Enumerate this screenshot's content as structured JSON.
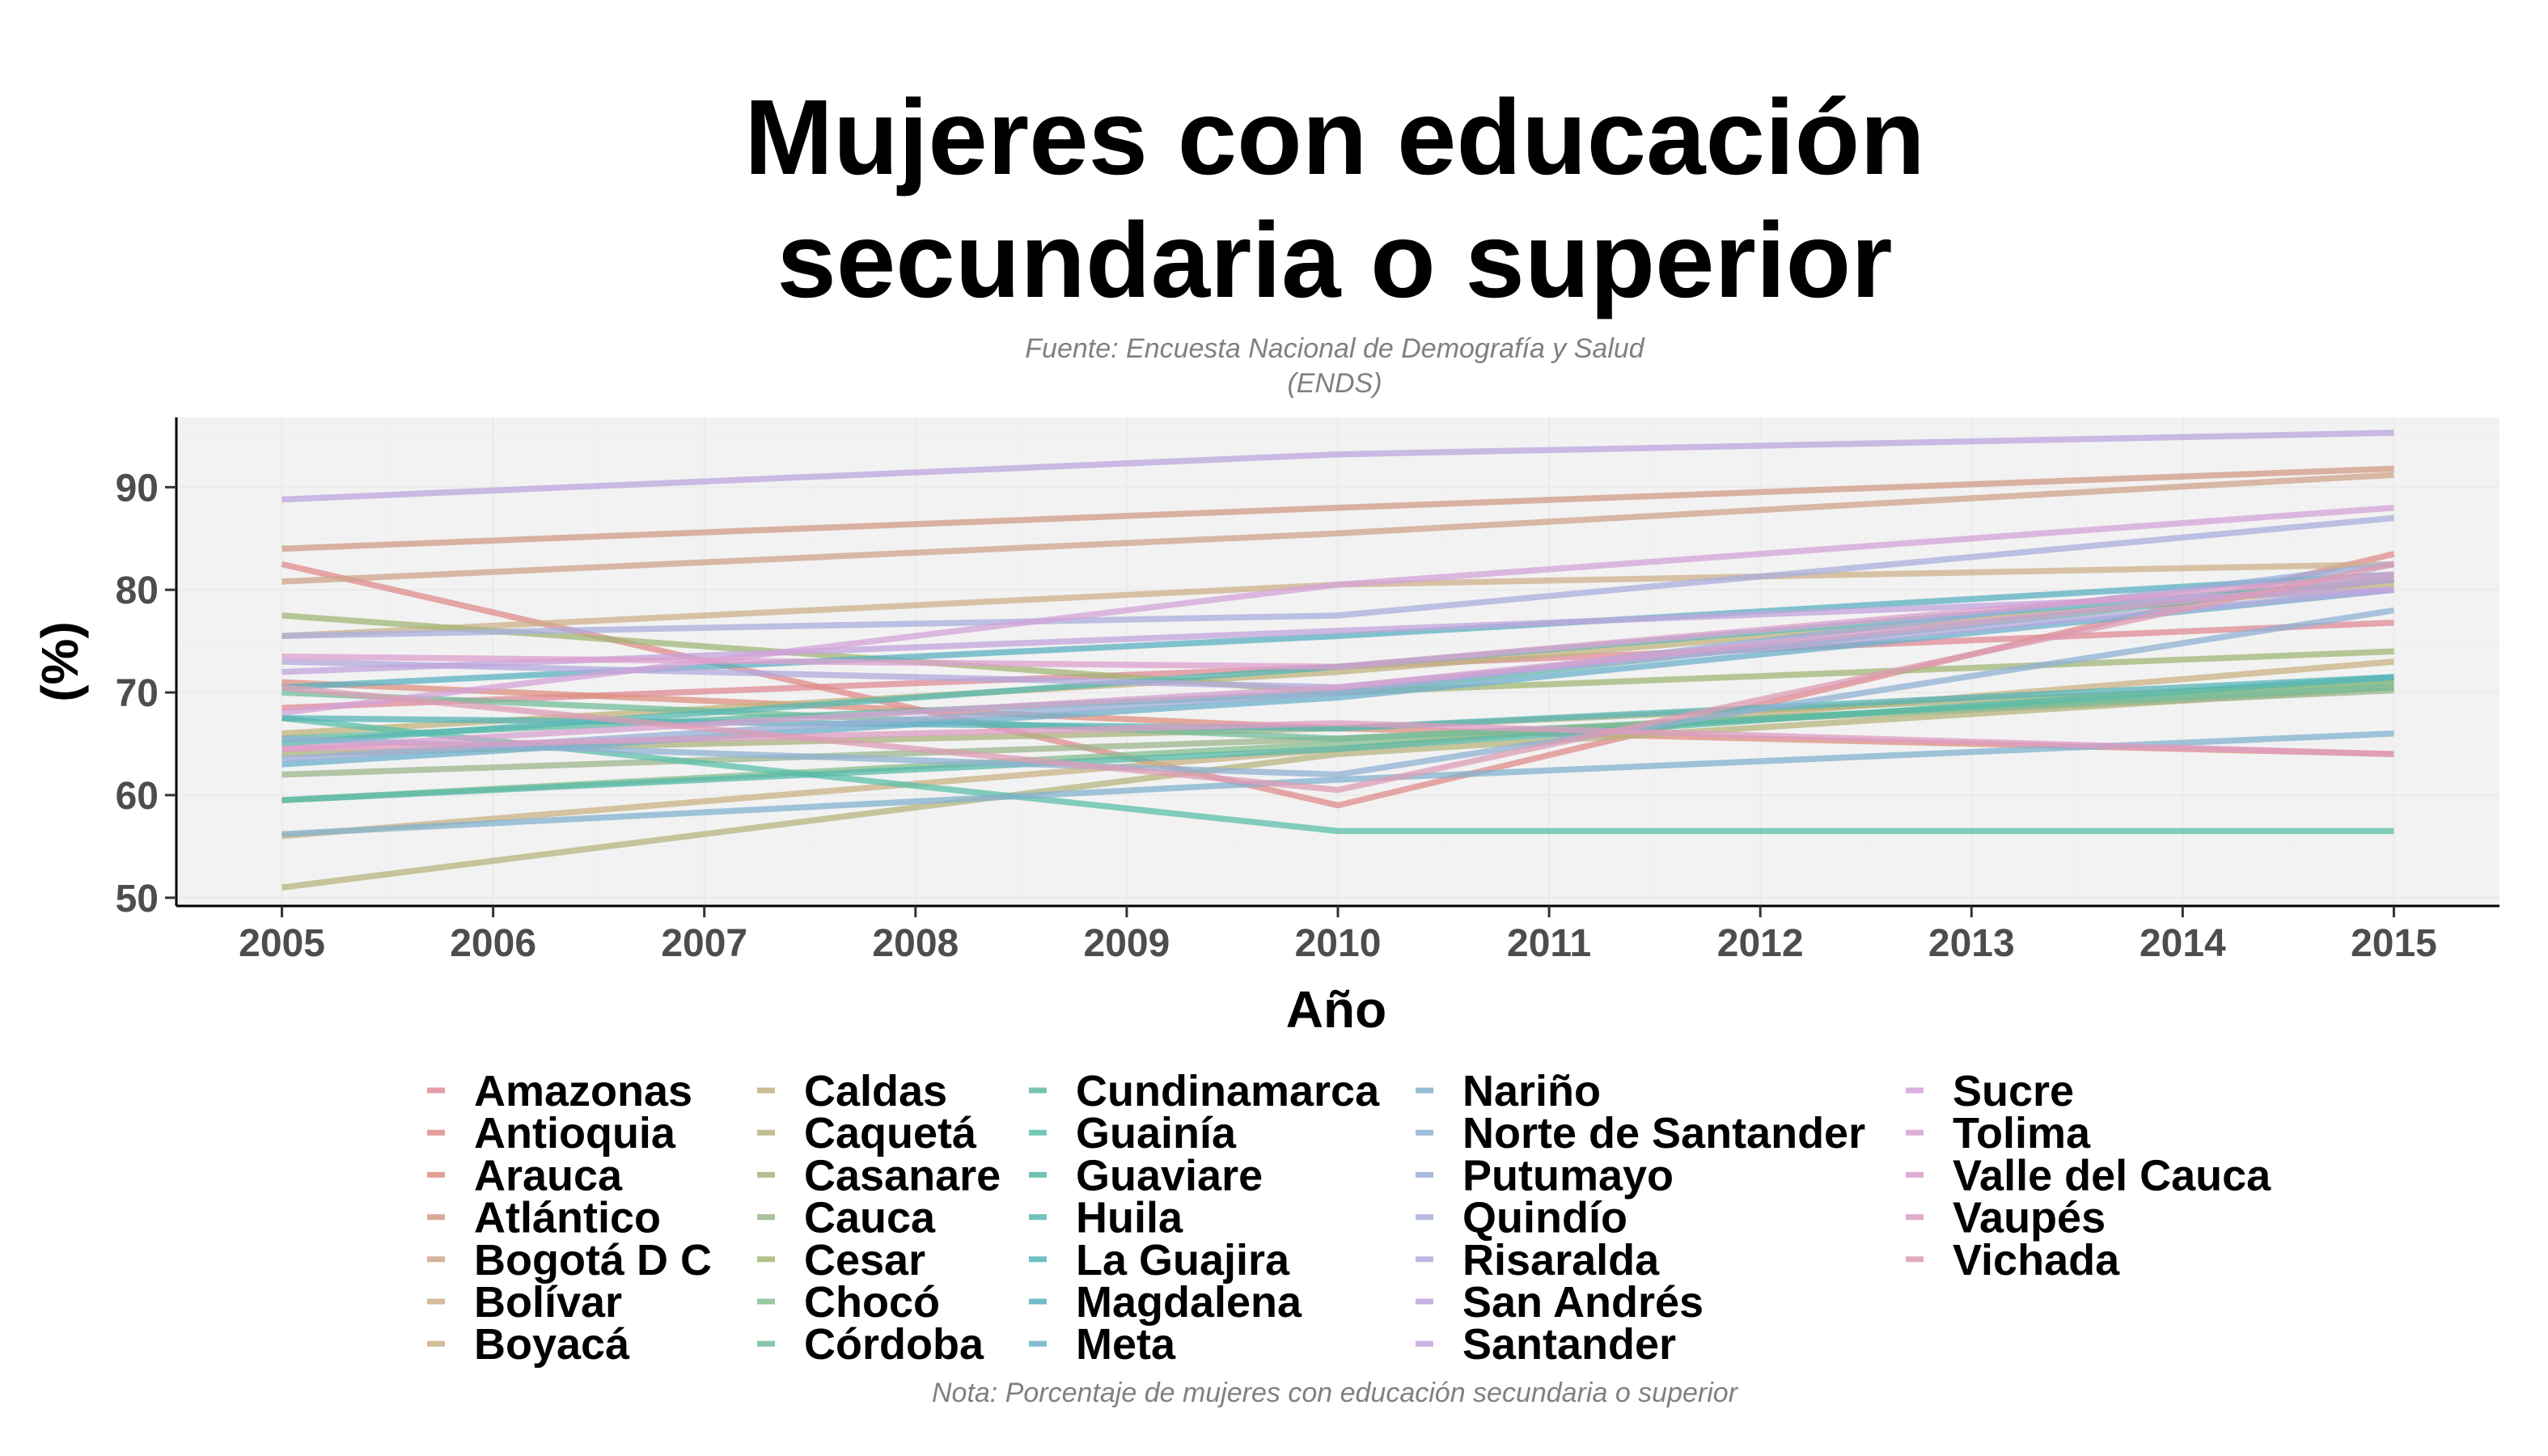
{
  "chart_data": {
    "type": "line",
    "title_lines": [
      "Mujeres con educación",
      "secundaria o superior"
    ],
    "subtitle_lines": [
      "Fuente: Encuesta Nacional de Demografía y Salud",
      "(ENDS)"
    ],
    "caption": "Nota: Porcentaje de mujeres con educación secundaria o superior",
    "xlabel": "Año",
    "ylabel": "(%)",
    "x_ticks": [
      "2005",
      "2006",
      "2007",
      "2008",
      "2009",
      "2010",
      "2011",
      "2012",
      "2013",
      "2014",
      "2015"
    ],
    "y_ticks": [
      "50",
      "60",
      "70",
      "80",
      "90"
    ],
    "xlim": [
      2004.5,
      2015.5
    ],
    "ylim": [
      49.2,
      96.8
    ],
    "grid": true,
    "legend_position": "bottom",
    "x": [
      2005,
      2010,
      2015
    ],
    "series": [
      {
        "name": "Amazonas",
        "color": "#df8b96",
        "values": [
          68.5,
          72.5,
          76.8
        ]
      },
      {
        "name": "Antioquia",
        "color": "#e08b8b",
        "values": [
          82.5,
          59.0,
          83.5
        ]
      },
      {
        "name": "Arauca",
        "color": "#dd9080",
        "values": [
          71.0,
          66.5,
          64.0
        ]
      },
      {
        "name": "Atlántico",
        "color": "#d29a86",
        "values": [
          84.0,
          88.0,
          91.8
        ]
      },
      {
        "name": "Bogotá D C",
        "color": "#cfa38b",
        "values": [
          80.8,
          85.5,
          91.2
        ]
      },
      {
        "name": "Bolívar",
        "color": "#cdb08b",
        "values": [
          75.5,
          80.5,
          82.5
        ]
      },
      {
        "name": "Boyacá",
        "color": "#cab184",
        "values": [
          56.0,
          64.5,
          73.0
        ]
      },
      {
        "name": "Caldas",
        "color": "#bfb37d",
        "values": [
          66.0,
          72.0,
          80.5
        ]
      },
      {
        "name": "Caquetá",
        "color": "#b6b47e",
        "values": [
          51.0,
          64.0,
          70.5
        ]
      },
      {
        "name": "Casanare",
        "color": "#a9b37d",
        "values": [
          64.0,
          66.5,
          71.0
        ]
      },
      {
        "name": "Cauca",
        "color": "#9cb58c",
        "values": [
          62.0,
          65.5,
          70.2
        ]
      },
      {
        "name": "Cesar",
        "color": "#a2b676",
        "values": [
          77.5,
          70.0,
          74.0
        ]
      },
      {
        "name": "Chocó",
        "color": "#86bd8f",
        "values": [
          59.5,
          65.0,
          71.0
        ]
      },
      {
        "name": "Córdoba",
        "color": "#74bc99",
        "values": [
          70.0,
          65.5,
          70.5
        ]
      },
      {
        "name": "Cundinamarca",
        "color": "#62b9a2",
        "values": [
          65.5,
          70.0,
          81.0
        ]
      },
      {
        "name": "Guainía",
        "color": "#5bbfa8",
        "values": [
          67.5,
          56.5,
          56.5
        ]
      },
      {
        "name": "Guaviare",
        "color": "#57baa8",
        "values": [
          59.5,
          64.5,
          71.5
        ]
      },
      {
        "name": "Huila",
        "color": "#57b8b2",
        "values": [
          65.0,
          72.5,
          81.0
        ]
      },
      {
        "name": "La Guajira",
        "color": "#57b4b7",
        "values": [
          67.5,
          66.5,
          71.5
        ]
      },
      {
        "name": "Magdalena",
        "color": "#5ab0c0",
        "values": [
          70.5,
          75.5,
          81.5
        ]
      },
      {
        "name": "Meta",
        "color": "#6eb0cc",
        "values": [
          63.0,
          69.5,
          80.0
        ]
      },
      {
        "name": "Nariño",
        "color": "#82b1cd",
        "values": [
          56.2,
          61.5,
          66.0
        ]
      },
      {
        "name": "Norte de Santander",
        "color": "#8fb1d3",
        "values": [
          65.5,
          62.0,
          78.0
        ]
      },
      {
        "name": "Putumayo",
        "color": "#9aaed8",
        "values": [
          63.5,
          70.0,
          82.5
        ]
      },
      {
        "name": "Quindío",
        "color": "#a9aedc",
        "values": [
          75.5,
          77.5,
          87.0
        ]
      },
      {
        "name": "Risaralda",
        "color": "#b1a9dd",
        "values": [
          73.0,
          70.5,
          80.0
        ]
      },
      {
        "name": "San Andrés",
        "color": "#bba6de",
        "values": [
          88.8,
          93.2,
          95.3
        ]
      },
      {
        "name": "Santander",
        "color": "#c1a4dc",
        "values": [
          72.0,
          76.0,
          80.0
        ]
      },
      {
        "name": "Sucre",
        "color": "#d3a3d8",
        "values": [
          68.0,
          80.5,
          88.0
        ]
      },
      {
        "name": "Tolima",
        "color": "#d6a0cf",
        "values": [
          64.5,
          70.5,
          81.0
        ]
      },
      {
        "name": "Valle del Cauca",
        "color": "#dc9fcd",
        "values": [
          73.5,
          72.5,
          81.5
        ]
      },
      {
        "name": "Vaupés",
        "color": "#dd9cc3",
        "values": [
          64.5,
          67.0,
          64.0
        ]
      },
      {
        "name": "Vichada",
        "color": "#dc9cb4",
        "values": [
          70.5,
          60.5,
          82.5
        ]
      }
    ]
  }
}
